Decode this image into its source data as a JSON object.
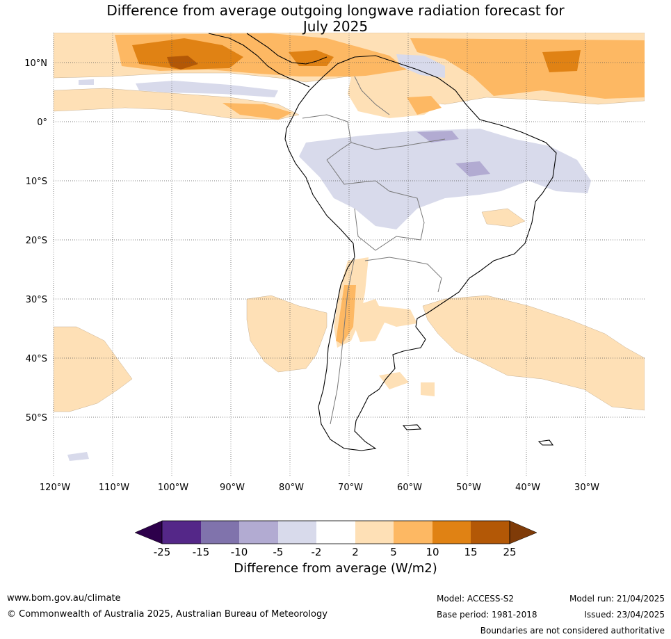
{
  "title_line1": "Difference from average outgoing longwave radiation forecast for",
  "title_line2": "July 2025",
  "lat_labels": [
    "10°N",
    "0°",
    "10°S",
    "20°S",
    "30°S",
    "40°S",
    "50°S"
  ],
  "lon_labels": [
    "120°W",
    "110°W",
    "100°W",
    "90°W",
    "80°W",
    "70°W",
    "60°W",
    "50°W",
    "40°W",
    "30°W"
  ],
  "colorbar": {
    "ticks": [
      "-25",
      "-15",
      "-10",
      "-5",
      "-2",
      "2",
      "5",
      "10",
      "15",
      "25"
    ],
    "colors": [
      "#2d004b",
      "#542788",
      "#8073ac",
      "#b2abd2",
      "#d8daeb",
      "#ffffff",
      "#fee0b6",
      "#fdb863",
      "#e08214",
      "#b35806",
      "#7f3b08"
    ],
    "title": "Difference from average (W/m2)"
  },
  "footer": {
    "website": "www.bom.gov.au/climate",
    "copyright": "© Commonwealth of Australia 2025, Australian Bureau of Meteorology",
    "model": "Model: ACCESS-S2",
    "base_period": "Base period: 1981-2018",
    "model_run": "Model run: 21/04/2025",
    "issued": "Issued: 23/04/2025",
    "disclaimer": "Boundaries are not considered authoritative"
  }
}
